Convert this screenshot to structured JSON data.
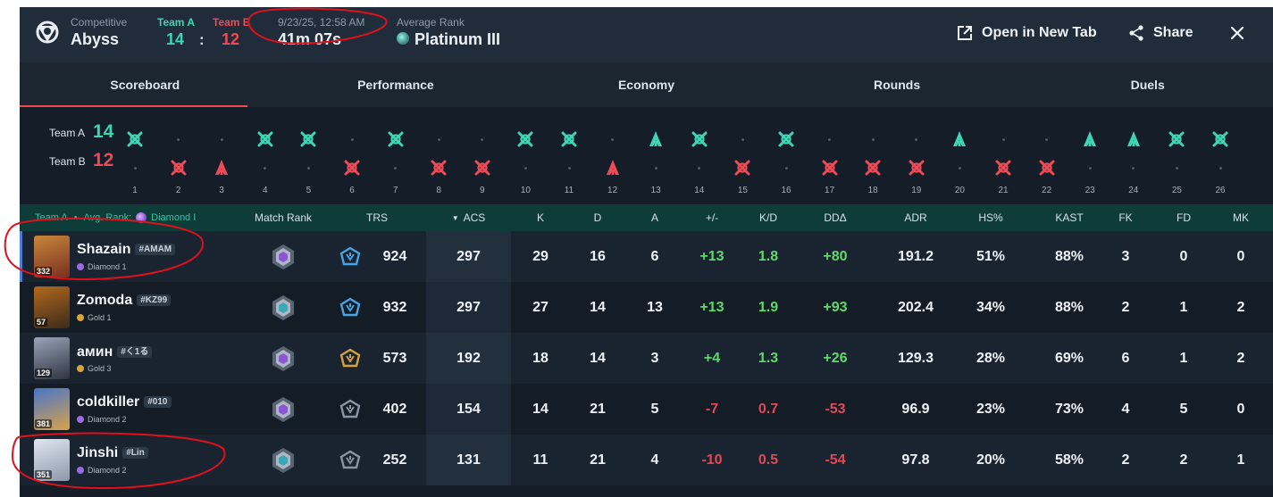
{
  "header": {
    "mode": "Competitive",
    "map": "Abyss",
    "team_a_label": "Team A",
    "team_b_label": "Team B",
    "team_a_score": "14",
    "team_b_score": "12",
    "colon": ":",
    "datetime": "9/23/25, 12:58 AM",
    "duration": "41m 07s",
    "avg_rank_label": "Average Rank",
    "avg_rank": "Platinum III",
    "open_new_tab": "Open in New Tab",
    "share": "Share"
  },
  "tabs": [
    "Scoreboard",
    "Performance",
    "Economy",
    "Rounds",
    "Duels"
  ],
  "timeline": {
    "team_a_label": "Team A",
    "team_b_label": "Team B",
    "team_a_score": "14",
    "team_b_score": "12",
    "rounds": [
      {
        "n": "1",
        "winner": "A",
        "icon": "elimination"
      },
      {
        "n": "2",
        "winner": "B",
        "icon": "elimination"
      },
      {
        "n": "3",
        "winner": "B",
        "icon": "defuse"
      },
      {
        "n": "4",
        "winner": "A",
        "icon": "elimination"
      },
      {
        "n": "5",
        "winner": "A",
        "icon": "elimination"
      },
      {
        "n": "6",
        "winner": "B",
        "icon": "elimination"
      },
      {
        "n": "7",
        "winner": "A",
        "icon": "elimination"
      },
      {
        "n": "8",
        "winner": "B",
        "icon": "elimination"
      },
      {
        "n": "9",
        "winner": "B",
        "icon": "elimination"
      },
      {
        "n": "10",
        "winner": "A",
        "icon": "elimination"
      },
      {
        "n": "11",
        "winner": "A",
        "icon": "elimination"
      },
      {
        "n": "12",
        "winner": "B",
        "icon": "defuse"
      },
      {
        "n": "13",
        "winner": "A",
        "icon": "defuse"
      },
      {
        "n": "14",
        "winner": "A",
        "icon": "elimination"
      },
      {
        "n": "15",
        "winner": "B",
        "icon": "elimination"
      },
      {
        "n": "16",
        "winner": "A",
        "icon": "elimination"
      },
      {
        "n": "17",
        "winner": "B",
        "icon": "elimination"
      },
      {
        "n": "18",
        "winner": "B",
        "icon": "elimination"
      },
      {
        "n": "19",
        "winner": "B",
        "icon": "elimination"
      },
      {
        "n": "20",
        "winner": "A",
        "icon": "defuse"
      },
      {
        "n": "21",
        "winner": "B",
        "icon": "elimination"
      },
      {
        "n": "22",
        "winner": "B",
        "icon": "elimination"
      },
      {
        "n": "23",
        "winner": "A",
        "icon": "defuse"
      },
      {
        "n": "24",
        "winner": "A",
        "icon": "defuse"
      },
      {
        "n": "25",
        "winner": "A",
        "icon": "elimination"
      },
      {
        "n": "26",
        "winner": "A",
        "icon": "elimination"
      }
    ]
  },
  "table": {
    "team_label": "Team A",
    "avg_rank_label": "Avg. Rank:",
    "avg_rank": "Diamond I",
    "columns": [
      "Match Rank",
      "TRS",
      "ACS",
      "K",
      "D",
      "A",
      "+/-",
      "K/D",
      "DDΔ",
      "ADR",
      "HS%",
      "KAST",
      "FK",
      "FD",
      "MK"
    ],
    "rows": [
      {
        "name": "Shazain",
        "tag": "#AMAM",
        "level": "332",
        "rank": "Diamond 1",
        "rank_color": "#9b6be0",
        "match_rank_color": "#8d55d6",
        "trs_color": "#46a4e6",
        "trs": "924",
        "acs": "297",
        "k": "29",
        "d": "16",
        "a": "6",
        "pm": "+13",
        "kd": "1.8",
        "dd": "+80",
        "adr": "191.2",
        "hs": "51%",
        "kast": "88%",
        "fk": "3",
        "fd": "0",
        "mk": "0",
        "signs": {
          "pm": "pos",
          "kd": "pos",
          "dd": "pos"
        }
      },
      {
        "name": "Zomoda",
        "tag": "#KZ99",
        "level": "57",
        "rank": "Gold 1",
        "rank_color": "#d9a53a",
        "match_rank_color": "#3aa8b8",
        "trs_color": "#46a4e6",
        "trs": "932",
        "acs": "297",
        "k": "27",
        "d": "14",
        "a": "13",
        "pm": "+13",
        "kd": "1.9",
        "dd": "+93",
        "adr": "202.4",
        "hs": "34%",
        "kast": "88%",
        "fk": "2",
        "fd": "1",
        "mk": "2",
        "signs": {
          "pm": "pos",
          "kd": "pos",
          "dd": "pos"
        }
      },
      {
        "name": "амин",
        "tag": "#く1る",
        "level": "129",
        "rank": "Gold 3",
        "rank_color": "#d9a53a",
        "match_rank_color": "#8d55d6",
        "trs_color": "#d6a33a",
        "trs": "573",
        "acs": "192",
        "k": "18",
        "d": "14",
        "a": "3",
        "pm": "+4",
        "kd": "1.3",
        "dd": "+26",
        "adr": "129.3",
        "hs": "28%",
        "kast": "69%",
        "fk": "6",
        "fd": "1",
        "mk": "2",
        "signs": {
          "pm": "pos",
          "kd": "pos",
          "dd": "pos"
        }
      },
      {
        "name": "coldkiller",
        "tag": "#010",
        "level": "381",
        "rank": "Diamond 2",
        "rank_color": "#9b6be0",
        "match_rank_color": "#8d55d6",
        "trs_color": "#8a96a4",
        "trs": "402",
        "acs": "154",
        "k": "14",
        "d": "21",
        "a": "5",
        "pm": "-7",
        "kd": "0.7",
        "dd": "-53",
        "adr": "96.9",
        "hs": "23%",
        "kast": "73%",
        "fk": "4",
        "fd": "5",
        "mk": "0",
        "signs": {
          "pm": "neg",
          "kd": "neg",
          "dd": "neg"
        }
      },
      {
        "name": "Jinshi",
        "tag": "#Lin",
        "level": "351",
        "rank": "Diamond 2",
        "rank_color": "#9b6be0",
        "match_rank_color": "#3aa8b8",
        "trs_color": "#8a96a4",
        "trs": "252",
        "acs": "131",
        "k": "11",
        "d": "21",
        "a": "4",
        "pm": "-10",
        "kd": "0.5",
        "dd": "-54",
        "adr": "97.8",
        "hs": "20%",
        "kast": "58%",
        "fk": "2",
        "fd": "2",
        "mk": "1",
        "signs": {
          "pm": "neg",
          "kd": "neg",
          "dd": "neg"
        }
      }
    ]
  },
  "colors": {
    "team_a": "#3fd5b4",
    "team_b": "#ef4b57",
    "positive": "#5fd96b",
    "negative": "#e04a57",
    "annotation": "#e0101c"
  }
}
